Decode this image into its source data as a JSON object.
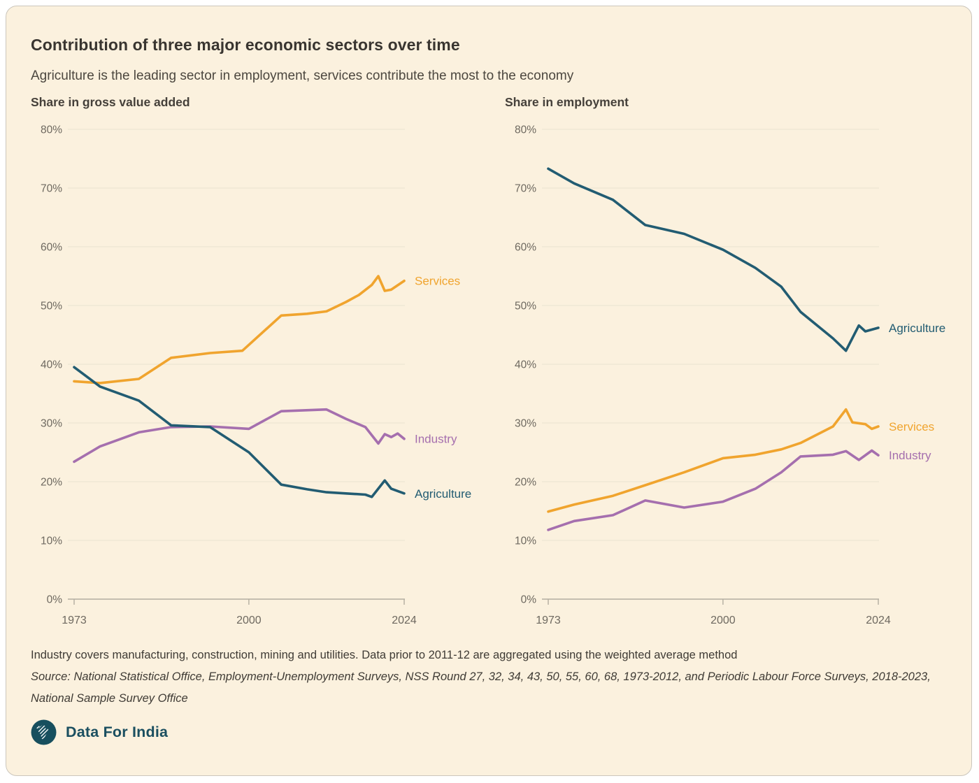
{
  "header": {
    "title": "Contribution of three major economic sectors over time",
    "subtitle": "Agriculture is the leading sector in employment, services contribute the most to the economy"
  },
  "colors": {
    "card_background": "#fbf1de",
    "grid": "#eae2d0",
    "axis": "#b3ada0",
    "tick_text": "#6e6960",
    "services": "#f0a42e",
    "industry": "#a56fae",
    "agriculture": "#225c72",
    "brand": "#1b4f60"
  },
  "chart_data": [
    {
      "type": "line",
      "title": "Share in gross value added",
      "x_range": [
        1973,
        2024
      ],
      "y_range": [
        0,
        80
      ],
      "y_tick_step": 10,
      "y_tick_suffix": "%",
      "grid": true,
      "legend_position": "line-end-labels",
      "x_ticks": [
        {
          "year": 1973,
          "label": "1973"
        },
        {
          "year": 2000,
          "label": "2000"
        },
        {
          "year": 2024,
          "label": "2024"
        }
      ],
      "series": [
        {
          "name": "Services",
          "color_key": "services",
          "points": [
            [
              1973,
              37.1
            ],
            [
              1977,
              36.8
            ],
            [
              1983,
              37.5
            ],
            [
              1988,
              41.1
            ],
            [
              1994,
              41.9
            ],
            [
              1999,
              42.3
            ],
            [
              2005,
              48.3
            ],
            [
              2009,
              48.6
            ],
            [
              2012,
              49.0
            ],
            [
              2015,
              50.6
            ],
            [
              2017,
              51.8
            ],
            [
              2019,
              53.5
            ],
            [
              2020,
              55.0
            ],
            [
              2021,
              52.5
            ],
            [
              2022,
              52.7
            ],
            [
              2024,
              54.2
            ]
          ]
        },
        {
          "name": "Industry",
          "color_key": "industry",
          "points": [
            [
              1973,
              23.4
            ],
            [
              1977,
              26.0
            ],
            [
              1983,
              28.4
            ],
            [
              1988,
              29.3
            ],
            [
              1994,
              29.4
            ],
            [
              2000,
              29.0
            ],
            [
              2005,
              32.0
            ],
            [
              2012,
              32.3
            ],
            [
              2015,
              30.7
            ],
            [
              2018,
              29.3
            ],
            [
              2020,
              26.5
            ],
            [
              2021,
              28.1
            ],
            [
              2022,
              27.6
            ],
            [
              2023,
              28.2
            ],
            [
              2024,
              27.3
            ]
          ]
        },
        {
          "name": "Agriculture",
          "color_key": "agriculture",
          "points": [
            [
              1973,
              39.5
            ],
            [
              1977,
              36.2
            ],
            [
              1983,
              33.8
            ],
            [
              1988,
              29.6
            ],
            [
              1994,
              29.3
            ],
            [
              2000,
              25.0
            ],
            [
              2005,
              19.5
            ],
            [
              2009,
              18.7
            ],
            [
              2012,
              18.2
            ],
            [
              2015,
              18.0
            ],
            [
              2018,
              17.8
            ],
            [
              2019,
              17.4
            ],
            [
              2021,
              20.2
            ],
            [
              2022,
              18.8
            ],
            [
              2024,
              18.0
            ]
          ]
        }
      ]
    },
    {
      "type": "line",
      "title": "Share in employment",
      "x_range": [
        1973,
        2024
      ],
      "y_range": [
        0,
        80
      ],
      "y_tick_step": 10,
      "y_tick_suffix": "%",
      "grid": true,
      "legend_position": "line-end-labels",
      "x_ticks": [
        {
          "year": 1973,
          "label": "1973"
        },
        {
          "year": 2000,
          "label": "2000"
        },
        {
          "year": 2024,
          "label": "2024"
        }
      ],
      "series": [
        {
          "name": "Agriculture",
          "color_key": "agriculture",
          "points": [
            [
              1973,
              73.3
            ],
            [
              1977,
              70.8
            ],
            [
              1983,
              68.0
            ],
            [
              1988,
              63.7
            ],
            [
              1994,
              62.2
            ],
            [
              2000,
              59.5
            ],
            [
              2005,
              56.4
            ],
            [
              2009,
              53.2
            ],
            [
              2012,
              48.9
            ],
            [
              2017,
              44.4
            ],
            [
              2019,
              42.3
            ],
            [
              2021,
              46.6
            ],
            [
              2022,
              45.6
            ],
            [
              2024,
              46.2
            ]
          ]
        },
        {
          "name": "Services",
          "color_key": "services",
          "points": [
            [
              1973,
              14.9
            ],
            [
              1977,
              16.1
            ],
            [
              1983,
              17.6
            ],
            [
              1988,
              19.4
            ],
            [
              1994,
              21.6
            ],
            [
              2000,
              24.0
            ],
            [
              2005,
              24.6
            ],
            [
              2009,
              25.5
            ],
            [
              2012,
              26.6
            ],
            [
              2017,
              29.4
            ],
            [
              2019,
              32.3
            ],
            [
              2020,
              30.1
            ],
            [
              2022,
              29.8
            ],
            [
              2023,
              29.0
            ],
            [
              2024,
              29.4
            ]
          ]
        },
        {
          "name": "Industry",
          "color_key": "industry",
          "points": [
            [
              1973,
              11.8
            ],
            [
              1977,
              13.3
            ],
            [
              1983,
              14.3
            ],
            [
              1988,
              16.8
            ],
            [
              1994,
              15.6
            ],
            [
              2000,
              16.6
            ],
            [
              2005,
              18.8
            ],
            [
              2009,
              21.6
            ],
            [
              2012,
              24.3
            ],
            [
              2017,
              24.6
            ],
            [
              2019,
              25.2
            ],
            [
              2021,
              23.7
            ],
            [
              2023,
              25.3
            ],
            [
              2024,
              24.5
            ]
          ]
        }
      ]
    }
  ],
  "footer": {
    "note": "Industry covers manufacturing, construction, mining and utilities. Data prior to 2011-12 are aggregated using the weighted average method",
    "source": "Source: National Statistical Office, Employment-Unemployment Surveys, NSS Round 27, 32, 34, 43, 50, 55, 60, 68, 1973-2012, and Periodic Labour Force Surveys, 2018-2023, National Sample Survey Office",
    "brand": "Data For India"
  }
}
